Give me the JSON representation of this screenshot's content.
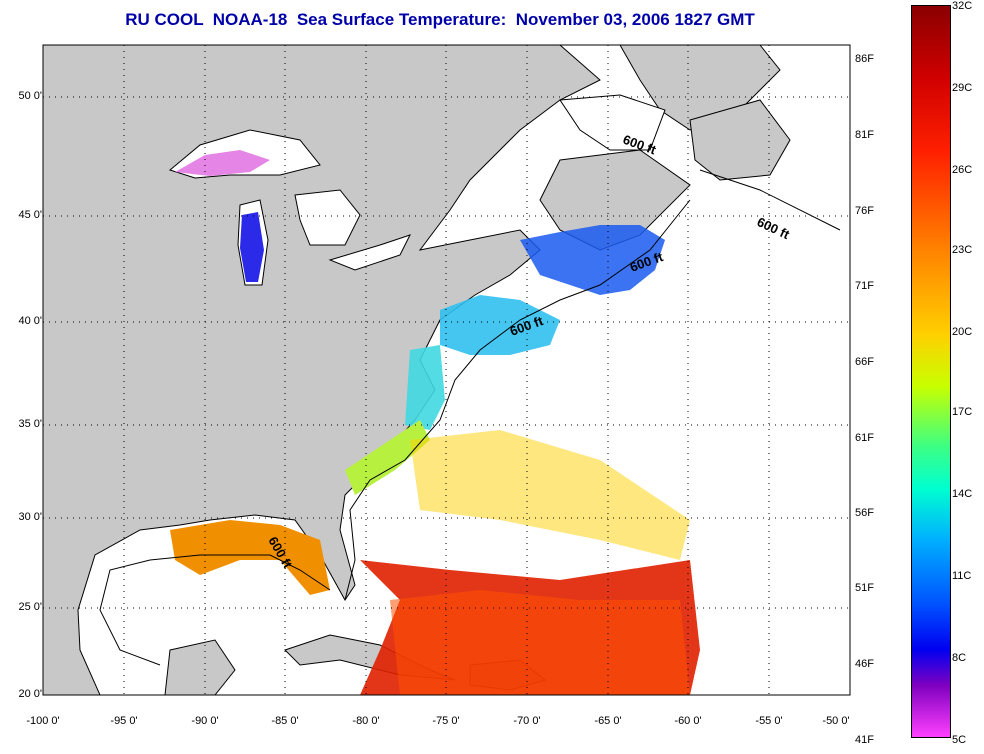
{
  "title": "RU COOL  NOAA-18  Sea Surface Temperature:  November 03, 2006 1827 GMT",
  "lat_labels": [
    "50 0'",
    "45 0'",
    "40 0'",
    "35 0'",
    "30 0'",
    "25 0'",
    "20 0'"
  ],
  "lon_labels": [
    "-100 0'",
    "-95 0'",
    "-90 0'",
    "-85 0'",
    "-80 0'",
    "-75 0'",
    "-70 0'",
    "-65 0'",
    "-60 0'",
    "-55 0'",
    "-50 0'"
  ],
  "isobath_label": "600 ft",
  "colorbar": {
    "fahrenheit": [
      "86F",
      "81F",
      "76F",
      "71F",
      "66F",
      "61F",
      "56F",
      "51F",
      "46F",
      "41F"
    ],
    "celsius": [
      "32C",
      "29C",
      "26C",
      "23C",
      "20C",
      "17C",
      "14C",
      "11C",
      "8C",
      "5C"
    ]
  },
  "colors": {
    "land": "#c8c8c8",
    "ocean": "#ffffff",
    "title": "#0000a8"
  }
}
